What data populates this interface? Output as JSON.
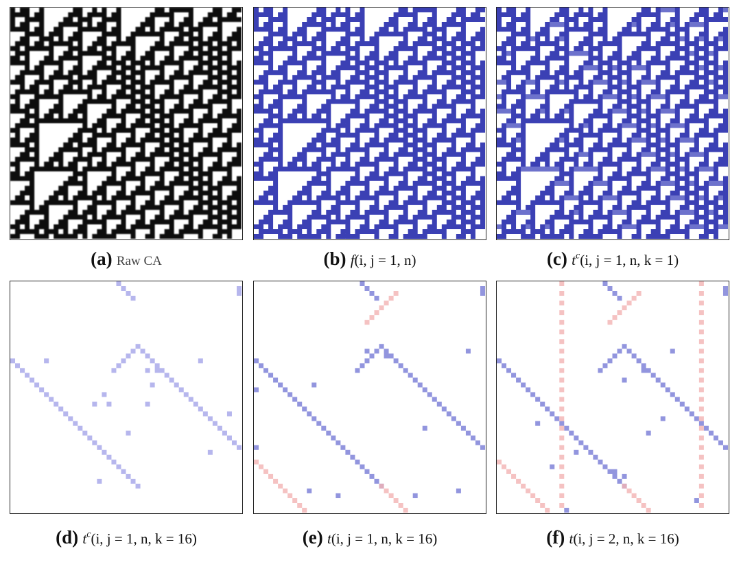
{
  "panels": [
    {
      "label": "(a)",
      "text": "Raw CA"
    },
    {
      "label": "(b)",
      "func": "f",
      "args": "(i, j = 1, n)"
    },
    {
      "label": "(c)",
      "func": "t",
      "sup": "c",
      "args": "(i, j = 1, n, k = 1)"
    },
    {
      "label": "(d)",
      "func": "t",
      "sup": "c",
      "args": "(i, j = 1, n, k = 16)"
    },
    {
      "label": "(e)",
      "func": "t",
      "args": "(i, j = 1, n, k = 16)"
    },
    {
      "label": "(f)",
      "func": "t",
      "args": "(i, j = 2, n, k = 16)"
    }
  ]
}
